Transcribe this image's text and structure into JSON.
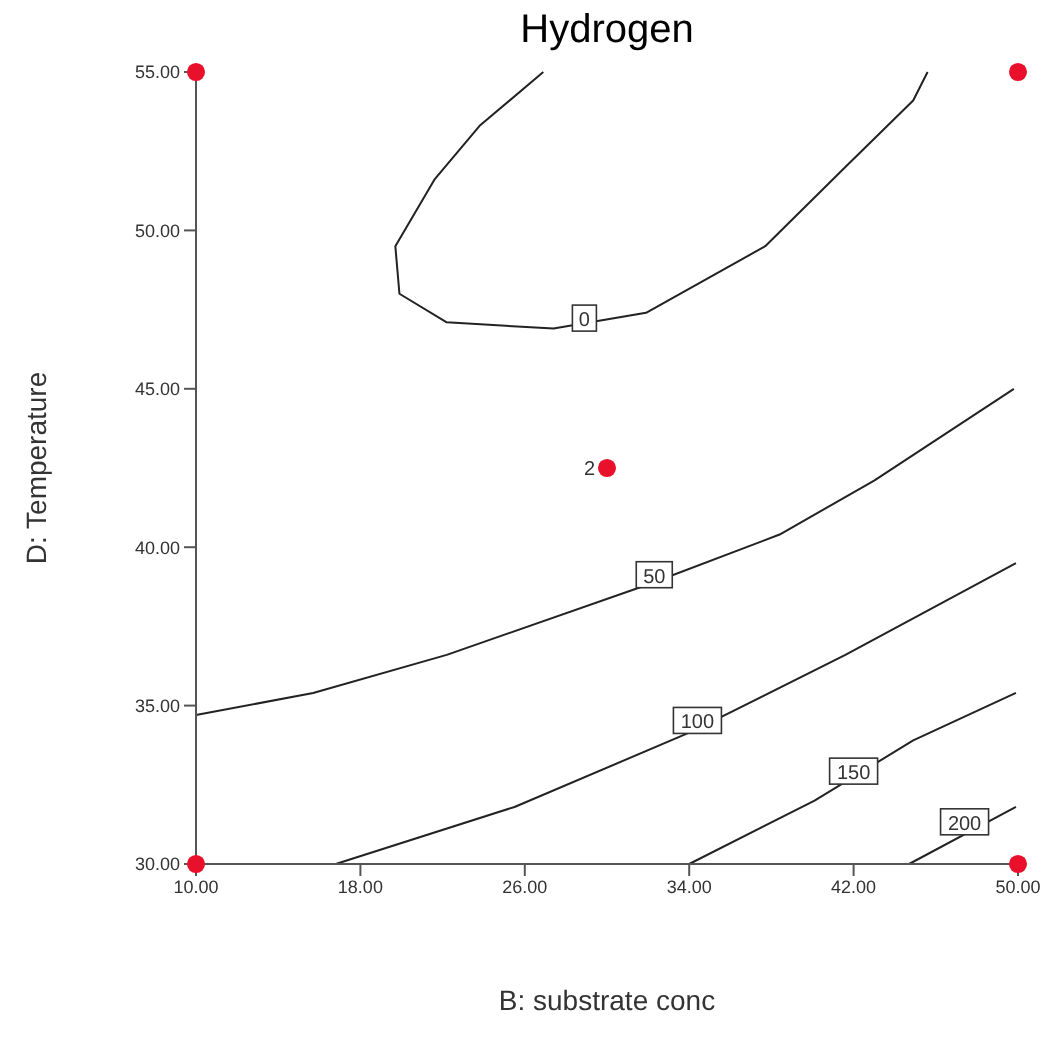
{
  "chart_data": {
    "type": "line",
    "title": "Hydrogen",
    "xlabel": "B: substrate conc",
    "ylabel": "D: Temperature",
    "xlim": [
      10,
      50
    ],
    "ylim": [
      30,
      55
    ],
    "xticks": [
      {
        "value": 10,
        "label": "10.00"
      },
      {
        "value": 18,
        "label": "18.00"
      },
      {
        "value": 26,
        "label": "26.00"
      },
      {
        "value": 34,
        "label": "34.00"
      },
      {
        "value": 42,
        "label": "42.00"
      },
      {
        "value": 50,
        "label": "50.00"
      }
    ],
    "yticks": [
      {
        "value": 30,
        "label": "30.00"
      },
      {
        "value": 35,
        "label": "35.00"
      },
      {
        "value": 40,
        "label": "40.00"
      },
      {
        "value": 45,
        "label": "45.00"
      },
      {
        "value": 50,
        "label": "50.00"
      },
      {
        "value": 55,
        "label": "55.00"
      }
    ],
    "grid": false,
    "marker": "none",
    "line_style": "solid",
    "series": [
      {
        "color": "#222222",
        "x": [
          26.9,
          23.8,
          21.6,
          19.7,
          19.9,
          22.2,
          27.4,
          31.9,
          37.7,
          41.6,
          44.9,
          45.6
        ],
        "values": [
          55,
          53.3,
          51.6,
          49.5,
          48.0,
          47.1,
          46.9,
          47.4,
          49.5,
          52.0,
          54.1,
          55
        ]
      },
      {
        "color": "#222222",
        "x": [
          10,
          15.7,
          22.2,
          31.9,
          38.4,
          43.0,
          49.8
        ],
        "values": [
          34.7,
          35.4,
          36.6,
          38.8,
          40.4,
          42.1,
          45.0
        ]
      },
      {
        "color": "#222222",
        "x": [
          16.8,
          25.5,
          34.2,
          41.6,
          49.9
        ],
        "values": [
          30,
          31.8,
          34.2,
          36.6,
          39.5
        ]
      },
      {
        "color": "#222222",
        "x": [
          34.0,
          40.1,
          44.9,
          49.9
        ],
        "values": [
          30,
          32.0,
          33.9,
          35.4
        ]
      },
      {
        "color": "#222222",
        "x": [
          44.7,
          49.9
        ],
        "values": [
          30,
          31.8
        ]
      },
      {
        "type": "scatter",
        "color": "#e8102a",
        "marker": "circle",
        "x": [
          10,
          10,
          50,
          50,
          30
        ],
        "values": [
          30,
          55,
          30,
          55,
          42.5
        ]
      }
    ],
    "annotations": [
      {
        "text": "0",
        "x": 28.9,
        "y": 47.2
      },
      {
        "text": "50",
        "x": 32.3,
        "y": 39.1
      },
      {
        "text": "100",
        "x": 34.4,
        "y": 34.5
      },
      {
        "text": "150",
        "x": 42.0,
        "y": 32.9
      },
      {
        "text": "200",
        "x": 47.4,
        "y": 31.3
      },
      {
        "text": "2",
        "x": 30,
        "y": 42.5
      }
    ]
  }
}
